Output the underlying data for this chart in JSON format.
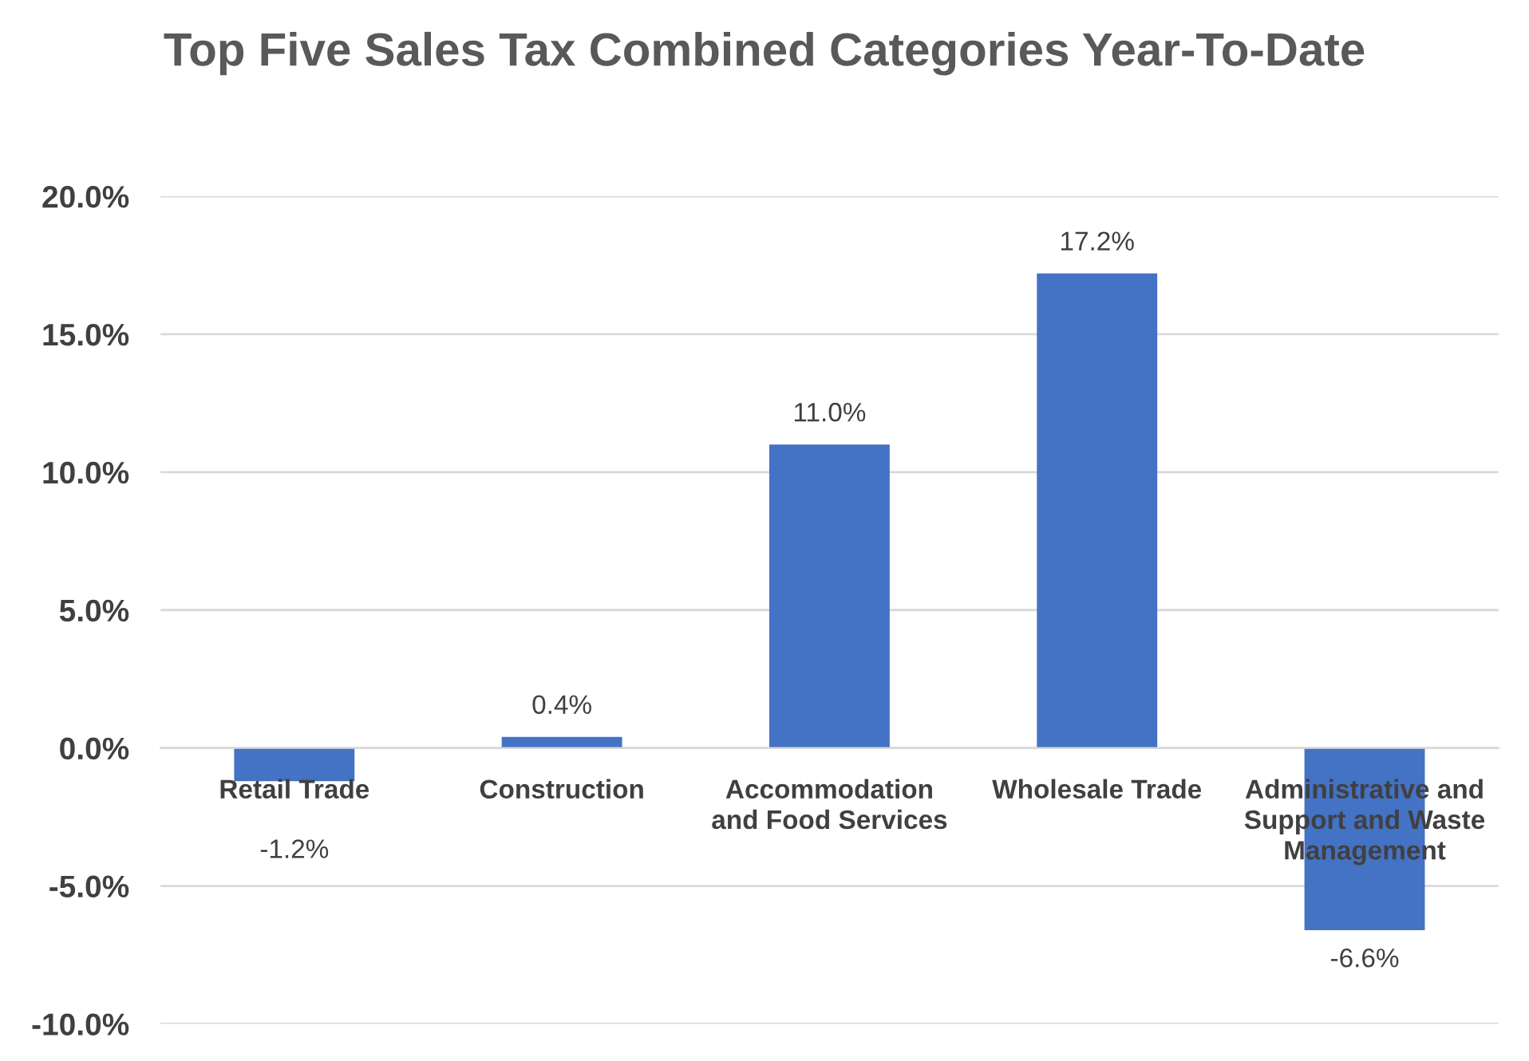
{
  "chart_data": {
    "type": "bar",
    "title": "Top Five Sales Tax Combined Categories Year-To-Date",
    "categories": [
      "Retail Trade",
      "Construction",
      "Accommodation and Food Services",
      "Wholesale Trade",
      "Administrative and Support and Waste Management"
    ],
    "values": [
      -1.2,
      0.4,
      11.0,
      17.2,
      -6.6
    ],
    "value_labels": [
      "-1.2%",
      "0.4%",
      "11.0%",
      "17.2%",
      "-6.6%"
    ],
    "color": "#4472c4",
    "ylim": [
      -10,
      20
    ],
    "yticks": [
      {
        "value": -10,
        "label": "-10.0%"
      },
      {
        "value": -5,
        "label": "-5.0%"
      },
      {
        "value": 0,
        "label": "0.0%"
      },
      {
        "value": 5,
        "label": "5.0%"
      },
      {
        "value": 10,
        "label": "10.0%"
      },
      {
        "value": 15,
        "label": "15.0%"
      },
      {
        "value": 20,
        "label": "20.0%"
      }
    ],
    "grid": "y"
  }
}
